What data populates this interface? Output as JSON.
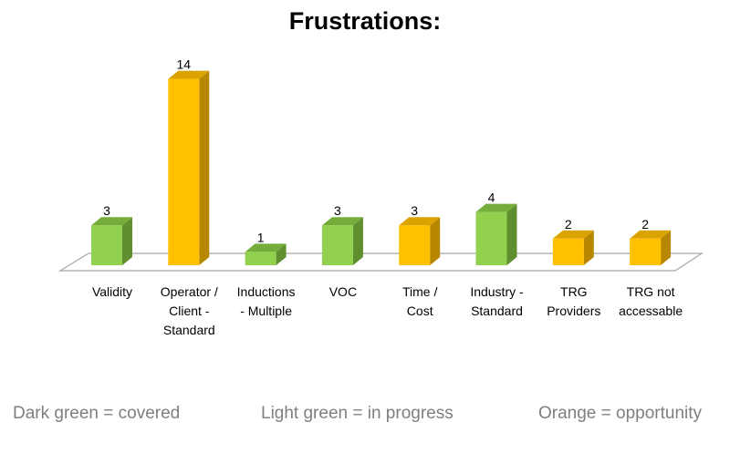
{
  "chart_data": {
    "type": "bar",
    "title": "Frustrations:",
    "categories": [
      [
        "Validity"
      ],
      [
        "Operator /",
        "Client -",
        "Standard"
      ],
      [
        "Inductions",
        "- Multiple"
      ],
      [
        "VOC"
      ],
      [
        "Time /",
        "Cost"
      ],
      [
        "Industry -",
        "Standard"
      ],
      [
        "TRG",
        "Providers"
      ],
      [
        "TRG not",
        "accessable"
      ]
    ],
    "values": [
      3,
      14,
      1,
      3,
      3,
      4,
      2,
      2
    ],
    "bar_status": [
      "light-green",
      "orange",
      "light-green",
      "light-green",
      "orange",
      "light-green",
      "orange",
      "orange"
    ],
    "data_labels": true,
    "grid": false,
    "style": "3d-column"
  },
  "colors": {
    "light-green": {
      "front": "#92d050",
      "side": "#5f8f2e",
      "top": "#74ad3a"
    },
    "orange": {
      "front": "#ffc000",
      "side": "#b88700",
      "top": "#dba300"
    },
    "floor_stroke": "#a6a6a6"
  },
  "legend": {
    "dark_green": "Dark green = covered",
    "light_green": "Light green = in progress",
    "orange": "Orange = opportunity"
  }
}
